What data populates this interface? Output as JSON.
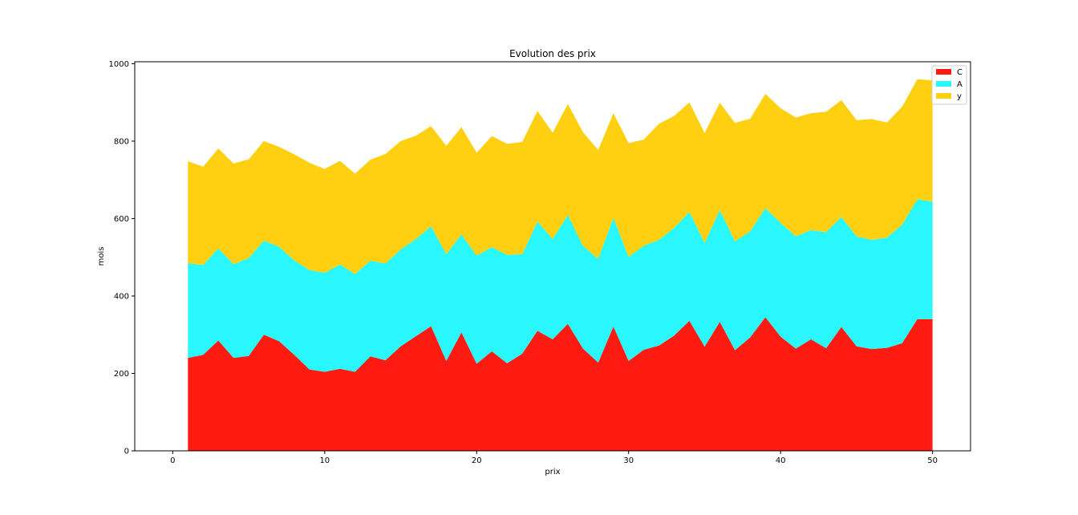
{
  "chart_data": {
    "type": "area",
    "stacked": true,
    "title": "Evolution des prix",
    "xlabel": "prix",
    "ylabel": "mois",
    "xlim": [
      -2.5,
      52.5
    ],
    "ylim": [
      0,
      1005
    ],
    "xticks": [
      0,
      10,
      20,
      30,
      40,
      50
    ],
    "yticks": [
      0,
      200,
      400,
      600,
      800,
      1000
    ],
    "grid": false,
    "legend_position": "top-right",
    "x": [
      1,
      2,
      3,
      4,
      5,
      6,
      7,
      8,
      9,
      10,
      11,
      12,
      13,
      14,
      15,
      16,
      17,
      18,
      19,
      20,
      21,
      22,
      23,
      24,
      25,
      26,
      27,
      28,
      29,
      30,
      31,
      32,
      33,
      34,
      35,
      36,
      37,
      38,
      39,
      40,
      41,
      42,
      43,
      44,
      45,
      46,
      47,
      48,
      49,
      50
    ],
    "series": [
      {
        "name": "C",
        "color": "#ff1a12",
        "values": [
          240,
          248,
          285,
          240,
          245,
          300,
          283,
          248,
          210,
          204,
          212,
          204,
          244,
          234,
          270,
          296,
          322,
          232,
          306,
          225,
          257,
          226,
          251,
          310,
          288,
          328,
          264,
          228,
          321,
          232,
          261,
          272,
          298,
          336,
          269,
          333,
          260,
          293,
          345,
          295,
          264,
          288,
          265,
          320,
          270,
          263,
          266,
          278,
          340,
          340
        ]
      },
      {
        "name": "A",
        "color": "#2af7fd",
        "values": [
          245,
          232,
          238,
          242,
          253,
          243,
          244,
          244,
          257,
          256,
          269,
          253,
          247,
          250,
          250,
          251,
          258,
          276,
          253,
          279,
          269,
          280,
          257,
          282,
          259,
          281,
          265,
          268,
          281,
          269,
          269,
          273,
          278,
          281,
          268,
          289,
          281,
          274,
          282,
          294,
          290,
          282,
          300,
          284,
          284,
          282,
          285,
          306,
          310,
          304
        ]
      },
      {
        "name": "y",
        "color": "#ffd012",
        "values": [
          263,
          254,
          258,
          260,
          255,
          257,
          258,
          274,
          277,
          268,
          268,
          259,
          261,
          283,
          280,
          267,
          259,
          280,
          277,
          266,
          287,
          287,
          290,
          286,
          275,
          287,
          294,
          281,
          270,
          294,
          274,
          300,
          289,
          283,
          284,
          277,
          306,
          291,
          295,
          296,
          307,
          302,
          311,
          302,
          300,
          312,
          297,
          305,
          310,
          313
        ]
      }
    ]
  }
}
